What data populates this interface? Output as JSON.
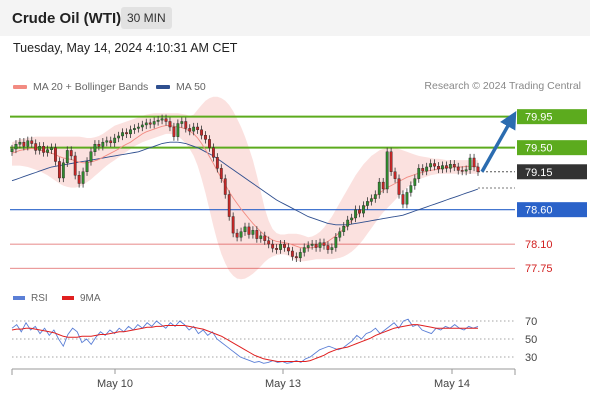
{
  "header": {
    "title": "Crude Oil (WTI)",
    "interval": "30 MIN"
  },
  "timestamp": "Tuesday, May 14, 2024 4:10:31 AM CET",
  "legend": {
    "ma20": {
      "label": "MA 20 + Bollinger Bands",
      "color": "#f28b82"
    },
    "ma50": {
      "label": "MA 50",
      "color": "#2f4f8f"
    }
  },
  "credit": "Research © 2024 Trading Central",
  "rsi_legend": {
    "rsi": {
      "label": "RSI",
      "color": "#5b7fd6"
    },
    "ma9": {
      "label": "9MA",
      "color": "#e02020"
    }
  },
  "colors": {
    "resistance": "#5cab1e",
    "support": "#2a62c9",
    "pivot": "#333333",
    "lower_support": "#d21f1f",
    "candle_up": "#2f8a2f",
    "candle_down": "#c62828",
    "arrow": "#2b6cb0"
  },
  "chart_data": [
    {
      "type": "candlestick",
      "y_range": [
        77.55,
        80.25
      ],
      "levels": [
        {
          "label": "79.95",
          "value": 79.95,
          "kind": "resistance"
        },
        {
          "label": "79.50",
          "value": 79.5,
          "kind": "resistance"
        },
        {
          "label": "79.15",
          "value": 79.15,
          "kind": "pivot"
        },
        {
          "label": "78.60",
          "value": 78.6,
          "kind": "support"
        },
        {
          "label": "78.10",
          "value": 78.1,
          "kind": "lower_support"
        },
        {
          "label": "77.75",
          "value": 77.75,
          "kind": "lower_support"
        }
      ],
      "close": [
        79.48,
        79.55,
        79.58,
        79.52,
        79.6,
        79.56,
        79.46,
        79.52,
        79.43,
        79.47,
        79.5,
        79.3,
        79.06,
        79.28,
        79.46,
        79.38,
        79.1,
        78.98,
        79.15,
        79.3,
        79.44,
        79.55,
        79.52,
        79.58,
        79.6,
        79.57,
        79.64,
        79.67,
        79.72,
        79.7,
        79.76,
        79.78,
        79.8,
        79.83,
        79.86,
        79.84,
        79.88,
        79.9,
        79.92,
        79.88,
        79.8,
        79.66,
        79.85,
        79.88,
        79.78,
        79.74,
        79.8,
        79.76,
        79.68,
        79.62,
        79.5,
        79.36,
        79.2,
        79.05,
        78.82,
        78.5,
        78.26,
        78.2,
        78.28,
        78.35,
        78.24,
        78.3,
        78.18,
        78.22,
        78.15,
        78.1,
        78.04,
        78.02,
        78.1,
        78.05,
        78.0,
        77.92,
        77.9,
        77.98,
        78.05,
        78.08,
        78.1,
        78.05,
        78.12,
        78.08,
        78.02,
        78.05,
        78.2,
        78.28,
        78.36,
        78.45,
        78.48,
        78.6,
        78.55,
        78.66,
        78.72,
        78.76,
        78.82,
        79.0,
        78.9,
        79.44,
        79.15,
        79.05,
        78.82,
        78.68,
        78.85,
        78.95,
        79.05,
        79.2,
        79.16,
        79.22,
        79.27,
        79.23,
        79.19,
        79.24,
        79.2,
        79.26,
        79.22,
        79.17,
        79.16,
        79.18,
        79.35,
        79.22,
        79.15
      ],
      "ma20": [
        79.42,
        79.44,
        79.46,
        79.47,
        79.48,
        79.49,
        79.48,
        79.47,
        79.45,
        79.43,
        79.42,
        79.4,
        79.37,
        79.35,
        79.34,
        79.33,
        79.31,
        79.29,
        79.28,
        79.28,
        79.29,
        79.31,
        79.33,
        79.36,
        79.39,
        79.42,
        79.45,
        79.48,
        79.52,
        79.55,
        79.58,
        79.62,
        79.66,
        79.7,
        79.73,
        79.75,
        79.77,
        79.79,
        79.81,
        79.82,
        79.82,
        79.81,
        79.8,
        79.79,
        79.77,
        79.74,
        79.7,
        79.64,
        79.56,
        79.47,
        79.37,
        79.27,
        79.16,
        79.06,
        78.96,
        78.86,
        78.77,
        78.69,
        78.61,
        78.54,
        78.47,
        78.4,
        78.34,
        78.28,
        78.23,
        78.19,
        78.16,
        78.14,
        78.13,
        78.12,
        78.11,
        78.09,
        78.07,
        78.05,
        78.04,
        78.04,
        78.05,
        78.06,
        78.08,
        78.11,
        78.14,
        78.18,
        78.22,
        78.27,
        78.32,
        78.38,
        78.44,
        78.5,
        78.56,
        78.62,
        78.68,
        78.74,
        78.79,
        78.84,
        78.88,
        78.92,
        78.95,
        78.98,
        79.01,
        79.04,
        79.07,
        79.09,
        79.11,
        79.13,
        79.14,
        79.16,
        79.17,
        79.18,
        79.19,
        79.2,
        79.21,
        79.21,
        79.22,
        79.22,
        79.22,
        79.23,
        79.23,
        79.23,
        79.23
      ],
      "bb_upper": [
        79.58,
        79.6,
        79.62,
        79.63,
        79.64,
        79.65,
        79.66,
        79.66,
        79.66,
        79.66,
        79.66,
        79.66,
        79.66,
        79.66,
        79.66,
        79.66,
        79.66,
        79.66,
        79.65,
        79.64,
        79.64,
        79.65,
        79.67,
        79.7,
        79.74,
        79.78,
        79.82,
        79.84,
        79.86,
        79.88,
        79.9,
        79.92,
        79.94,
        79.96,
        79.98,
        79.99,
        80.0,
        80.0,
        80.0,
        80.0,
        80.0,
        80.0,
        80.0,
        79.99,
        79.98,
        79.96,
        79.98,
        80.05,
        80.12,
        80.18,
        80.22,
        80.24,
        80.24,
        80.22,
        80.18,
        80.12,
        80.03,
        79.92,
        79.8,
        79.66,
        79.5,
        79.32,
        79.1,
        78.86,
        78.62,
        78.44,
        78.32,
        78.26,
        78.24,
        78.24,
        78.25,
        78.25,
        78.25,
        78.24,
        78.22,
        78.2,
        78.21,
        78.24,
        78.28,
        78.34,
        78.42,
        78.5,
        78.6,
        78.7,
        78.8,
        78.9,
        79.0,
        79.1,
        79.18,
        79.26,
        79.32,
        79.38,
        79.42,
        79.46,
        79.48,
        79.5,
        79.5,
        79.5,
        79.48,
        79.46,
        79.44,
        79.42,
        79.4,
        79.38,
        79.37,
        79.36,
        79.35,
        79.34,
        79.34,
        79.33,
        79.32,
        79.32,
        79.32,
        79.32,
        79.32,
        79.32,
        79.32,
        79.32,
        79.32
      ],
      "bb_lower": [
        79.24,
        79.24,
        79.24,
        79.23,
        79.22,
        79.2,
        79.18,
        79.16,
        79.13,
        79.1,
        79.06,
        79.02,
        78.98,
        78.95,
        78.93,
        78.92,
        78.92,
        78.93,
        78.96,
        79.0,
        79.04,
        79.09,
        79.14,
        79.19,
        79.24,
        79.28,
        79.32,
        79.36,
        79.4,
        79.44,
        79.48,
        79.52,
        79.55,
        79.58,
        79.6,
        79.62,
        79.64,
        79.66,
        79.68,
        79.7,
        79.7,
        79.69,
        79.66,
        79.62,
        79.56,
        79.48,
        79.38,
        79.24,
        79.05,
        78.84,
        78.6,
        78.36,
        78.14,
        77.96,
        77.82,
        77.71,
        77.64,
        77.6,
        77.59,
        77.6,
        77.63,
        77.67,
        77.72,
        77.78,
        77.84,
        77.89,
        77.92,
        77.94,
        77.95,
        77.95,
        77.93,
        77.89,
        77.86,
        77.85,
        77.85,
        77.86,
        77.87,
        77.88,
        77.88,
        77.88,
        77.88,
        77.88,
        77.89,
        77.9,
        77.92,
        77.95,
        77.99,
        78.04,
        78.1,
        78.17,
        78.25,
        78.33,
        78.41,
        78.49,
        78.56,
        78.62,
        78.68,
        78.74,
        78.8,
        78.86,
        78.92,
        78.97,
        79.01,
        79.04,
        79.06,
        79.08,
        79.1,
        79.11,
        79.12,
        79.12,
        79.12,
        79.12,
        79.12,
        79.12,
        79.12,
        79.12,
        79.12,
        79.12,
        79.12
      ],
      "ma50": [
        79.02,
        79.04,
        79.06,
        79.08,
        79.1,
        79.12,
        79.14,
        79.16,
        79.18,
        79.2,
        79.22,
        79.23,
        79.24,
        79.25,
        79.26,
        79.27,
        79.28,
        79.29,
        79.3,
        79.31,
        79.32,
        79.33,
        79.34,
        79.35,
        79.36,
        79.37,
        79.38,
        79.39,
        79.4,
        79.41,
        79.42,
        79.43,
        79.44,
        79.46,
        79.48,
        79.5,
        79.52,
        79.54,
        79.56,
        79.57,
        79.58,
        79.58,
        79.58,
        79.57,
        79.56,
        79.54,
        79.52,
        79.5,
        79.47,
        79.44,
        79.41,
        79.38,
        79.34,
        79.3,
        79.26,
        79.22,
        79.18,
        79.14,
        79.1,
        79.06,
        79.02,
        78.98,
        78.94,
        78.9,
        78.86,
        78.82,
        78.78,
        78.74,
        78.71,
        78.68,
        78.65,
        78.62,
        78.59,
        78.56,
        78.53,
        78.5,
        78.48,
        78.46,
        78.44,
        78.42,
        78.4,
        78.39,
        78.38,
        78.38,
        78.38,
        78.38,
        78.39,
        78.4,
        78.41,
        78.42,
        78.43,
        78.44,
        78.45,
        78.46,
        78.47,
        78.48,
        78.49,
        78.5,
        78.51,
        78.52,
        78.54,
        78.56,
        78.58,
        78.6,
        78.62,
        78.64,
        78.66,
        78.68,
        78.7,
        78.72,
        78.74,
        78.76,
        78.78,
        78.8,
        78.82,
        78.84,
        78.86,
        78.88,
        78.9
      ],
      "forecast_arrow": {
        "from": 79.15,
        "to": 79.95
      }
    },
    {
      "type": "line",
      "y_range": [
        20,
        80
      ],
      "y_ticks": [
        70,
        50,
        30
      ],
      "rsi": [
        62,
        66,
        58,
        68,
        60,
        64,
        56,
        62,
        54,
        60,
        50,
        42,
        55,
        62,
        58,
        46,
        50,
        44,
        52,
        58,
        54,
        60,
        56,
        62,
        58,
        64,
        60,
        66,
        62,
        68,
        64,
        70,
        66,
        62,
        68,
        64,
        70,
        66,
        60,
        64,
        56,
        60,
        54,
        58,
        50,
        46,
        42,
        38,
        34,
        30,
        28,
        26,
        24,
        25,
        23,
        24,
        26,
        24,
        25,
        23,
        24,
        26,
        24,
        28,
        30,
        34,
        38,
        40,
        42,
        40,
        38,
        40,
        44,
        48,
        54,
        50,
        56,
        58,
        62,
        56,
        60,
        64,
        68,
        62,
        70,
        72,
        64,
        66,
        60,
        58,
        56,
        62,
        60,
        64,
        62,
        66,
        62,
        60,
        64,
        62,
        64
      ],
      "ma9": [
        60,
        61,
        61,
        62,
        62,
        61,
        60,
        59,
        58,
        57,
        55,
        53,
        52,
        52,
        52,
        53,
        53,
        53,
        54,
        55,
        55,
        56,
        57,
        58,
        58,
        59,
        60,
        61,
        62,
        63,
        63,
        64,
        64,
        65,
        65,
        65,
        65,
        65,
        64,
        63,
        62,
        61,
        59,
        57,
        55,
        53,
        50,
        47,
        44,
        41,
        38,
        35,
        32,
        30,
        28,
        27,
        26,
        25,
        25,
        25,
        25,
        25,
        25,
        25,
        26,
        28,
        30,
        32,
        35,
        37,
        39,
        40,
        41,
        43,
        45,
        47,
        49,
        51,
        54,
        56,
        58,
        60,
        62,
        63,
        64,
        65,
        66,
        66,
        65,
        64,
        63,
        62,
        62,
        62,
        62,
        62,
        62,
        62,
        62,
        62,
        62
      ]
    }
  ],
  "x_axis": {
    "labels": [
      {
        "label": "May 10"
      },
      {
        "label": "May 13"
      },
      {
        "label": "May 14"
      }
    ]
  }
}
